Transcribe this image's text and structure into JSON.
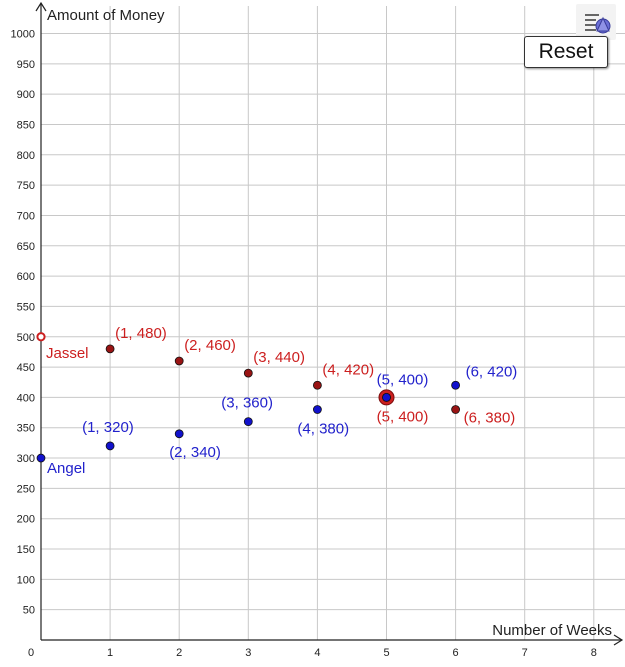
{
  "app": {
    "reset_label": "Reset",
    "style_bar_icon": "graphics-style-bar-icon"
  },
  "chart_data": {
    "type": "scatter",
    "xlabel": "Number of Weeks",
    "ylabel": "Amount of Money",
    "xlim": [
      0,
      8
    ],
    "ylim": [
      0,
      1000
    ],
    "x_ticks": [
      0,
      1,
      2,
      3,
      4,
      5,
      6,
      7,
      8
    ],
    "y_ticks": [
      50,
      100,
      150,
      200,
      250,
      300,
      350,
      400,
      450,
      500,
      550,
      600,
      650,
      700,
      750,
      800,
      850,
      900,
      950,
      1000
    ],
    "grid": true,
    "series": [
      {
        "name": "Jassel",
        "color": "#cc1f1f",
        "fill": "#991414",
        "start": {
          "x": 0,
          "y": 500,
          "label": "Jassel",
          "hollow": true
        },
        "points": [
          {
            "x": 1,
            "y": 480,
            "label": "(1, 480)"
          },
          {
            "x": 2,
            "y": 460,
            "label": "(2, 460)"
          },
          {
            "x": 3,
            "y": 440,
            "label": "(3, 440)"
          },
          {
            "x": 4,
            "y": 420,
            "label": "(4, 420)"
          },
          {
            "x": 5,
            "y": 400,
            "label": "(5, 400)"
          },
          {
            "x": 6,
            "y": 380,
            "label": "(6, 380)"
          }
        ]
      },
      {
        "name": "Angel",
        "color": "#2222cc",
        "fill": "#1111cc",
        "start": {
          "x": 0,
          "y": 300,
          "label": "Angel",
          "hollow": false
        },
        "points": [
          {
            "x": 1,
            "y": 320,
            "label": "(1, 320)"
          },
          {
            "x": 2,
            "y": 340,
            "label": "(2, 340)"
          },
          {
            "x": 3,
            "y": 360,
            "label": "(3, 360)"
          },
          {
            "x": 4,
            "y": 380,
            "label": "(4, 380)"
          },
          {
            "x": 5,
            "y": 400,
            "label": "(5, 400)"
          },
          {
            "x": 6,
            "y": 420,
            "label": "(6, 420)"
          }
        ]
      }
    ],
    "highlight": {
      "x": 5,
      "y": 400
    }
  }
}
